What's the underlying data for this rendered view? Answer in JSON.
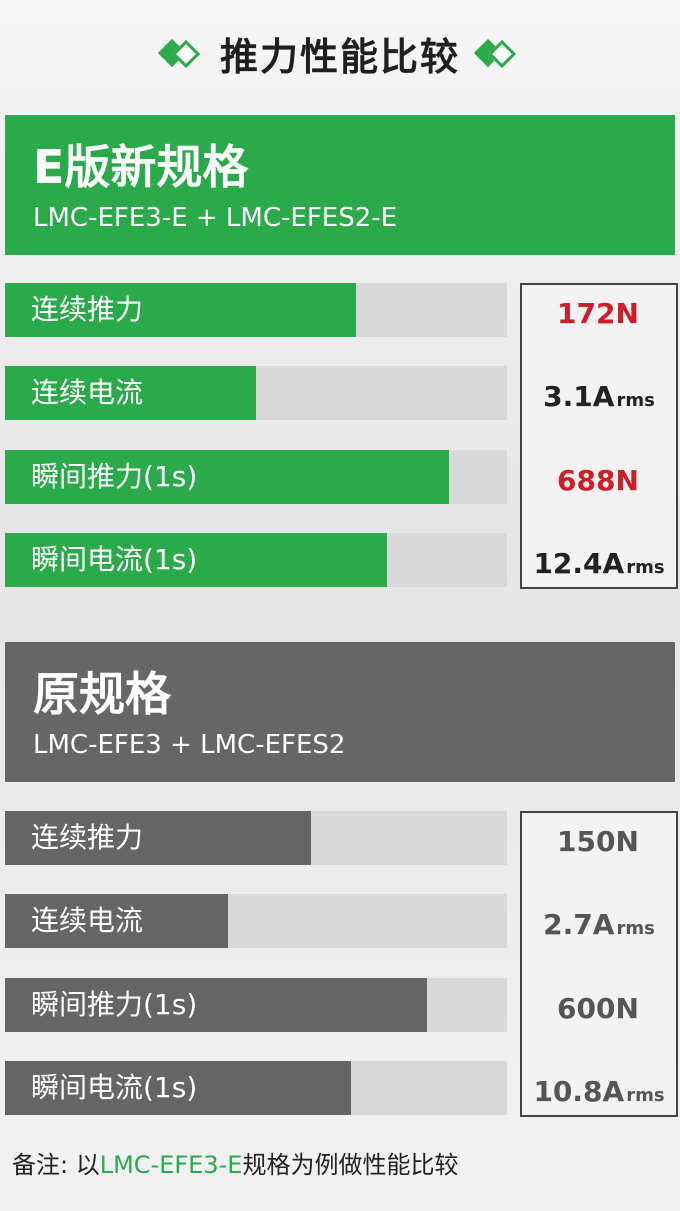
{
  "title": "推力性能比较",
  "new_spec": {
    "heading": "E版新规格",
    "models": "LMC-EFE3-E + LMC-EFES2-E",
    "rows": [
      {
        "label": "连续推力",
        "value": "172N",
        "unit": "",
        "fill": 0.7
      },
      {
        "label": "连续电流",
        "value": "3.1A",
        "unit": "rms",
        "fill": 0.5
      },
      {
        "label": "瞬间推力(1s)",
        "value": "688N",
        "unit": "",
        "fill": 0.885
      },
      {
        "label": "瞬间电流(1s)",
        "value": "12.4A",
        "unit": "rms",
        "fill": 0.76
      }
    ]
  },
  "old_spec": {
    "heading": "原规格",
    "models": "LMC-EFE3 + LMC-EFES2",
    "rows": [
      {
        "label": "连续推力",
        "value": "150N",
        "unit": "",
        "fill": 0.61
      },
      {
        "label": "连续电流",
        "value": "2.7A",
        "unit": "rms",
        "fill": 0.445
      },
      {
        "label": "瞬间推力(1s)",
        "value": "600N",
        "unit": "",
        "fill": 0.84
      },
      {
        "label": "瞬间电流(1s)",
        "value": "10.8A",
        "unit": "rms",
        "fill": 0.69
      }
    ]
  },
  "note": {
    "prefix": "备注: 以",
    "highlight": "LMC-EFE3-E",
    "suffix": "规格为例做性能比较"
  },
  "colors": {
    "accent_green": "#2aaa4a",
    "gray_header": "#666666",
    "red_value": "#d01d27"
  }
}
